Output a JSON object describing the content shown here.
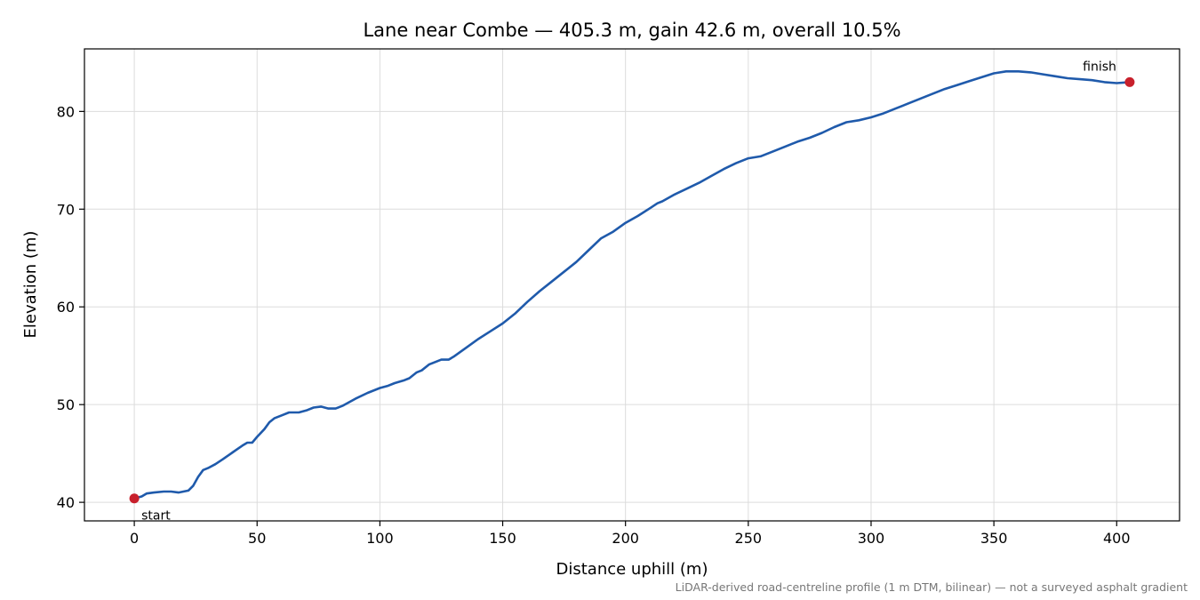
{
  "chart_data": {
    "type": "line",
    "title": "Lane near Combe — 405.3 m, gain 42.6 m, overall 10.5%",
    "xlabel": "Distance uphill (m)",
    "ylabel": "Elevation (m)",
    "caption": "LiDAR-derived road-centreline profile (1 m DTM, bilinear) — not a surveyed asphalt gradient",
    "xlim": [
      -20.3,
      425.6
    ],
    "ylim": [
      38.1,
      86.4
    ],
    "xticks": [
      "0",
      "50",
      "100",
      "150",
      "200",
      "250",
      "300",
      "350",
      "400"
    ],
    "yticks": [
      "40",
      "50",
      "60",
      "70",
      "80"
    ],
    "grid": true,
    "line_color": "#1f5aab",
    "marker_color": "#c8202c",
    "series": [
      {
        "x": [
          0,
          3,
          5,
          8,
          12,
          15,
          18,
          22,
          24,
          26,
          28,
          30,
          33,
          36,
          40,
          44,
          46,
          48,
          50,
          53,
          55,
          57,
          60,
          63,
          67,
          70,
          73,
          76,
          79,
          82,
          85,
          90,
          95,
          100,
          103,
          106,
          110,
          112,
          115,
          117,
          120,
          125,
          128,
          130,
          135,
          140,
          145,
          150,
          155,
          160,
          165,
          170,
          175,
          180,
          185,
          190,
          195,
          200,
          205,
          210,
          213,
          215,
          220,
          225,
          230,
          235,
          240,
          245,
          250,
          255,
          260,
          265,
          270,
          275,
          280,
          285,
          290,
          295,
          300,
          305,
          310,
          315,
          320,
          325,
          330,
          335,
          340,
          345,
          350,
          355,
          360,
          365,
          370,
          375,
          380,
          385,
          390,
          395,
          400,
          405.3
        ],
        "y": [
          40.4,
          40.6,
          40.9,
          41.0,
          41.1,
          41.1,
          41.0,
          41.2,
          41.7,
          42.6,
          43.3,
          43.5,
          43.9,
          44.4,
          45.1,
          45.8,
          46.1,
          46.1,
          46.7,
          47.5,
          48.2,
          48.6,
          48.9,
          49.2,
          49.2,
          49.4,
          49.7,
          49.8,
          49.6,
          49.6,
          49.9,
          50.6,
          51.2,
          51.7,
          51.9,
          52.2,
          52.5,
          52.7,
          53.3,
          53.5,
          54.1,
          54.6,
          54.6,
          54.9,
          55.8,
          56.7,
          57.5,
          58.3,
          59.3,
          60.5,
          61.6,
          62.6,
          63.6,
          64.6,
          65.8,
          67.0,
          67.7,
          68.6,
          69.3,
          70.1,
          70.6,
          70.8,
          71.5,
          72.1,
          72.7,
          73.4,
          74.1,
          74.7,
          75.2,
          75.4,
          75.9,
          76.4,
          76.9,
          77.3,
          77.8,
          78.4,
          78.9,
          79.1,
          79.4,
          79.8,
          80.3,
          80.8,
          81.3,
          81.8,
          82.3,
          82.7,
          83.1,
          83.5,
          83.9,
          84.1,
          84.1,
          84.0,
          83.8,
          83.6,
          83.4,
          83.3,
          83.2,
          83.0,
          82.9,
          83.0
        ]
      }
    ],
    "annotations": [
      {
        "label": "start",
        "x": 0,
        "y": 40.4
      },
      {
        "label": "finish",
        "x": 405.3,
        "y": 83.0
      }
    ]
  }
}
